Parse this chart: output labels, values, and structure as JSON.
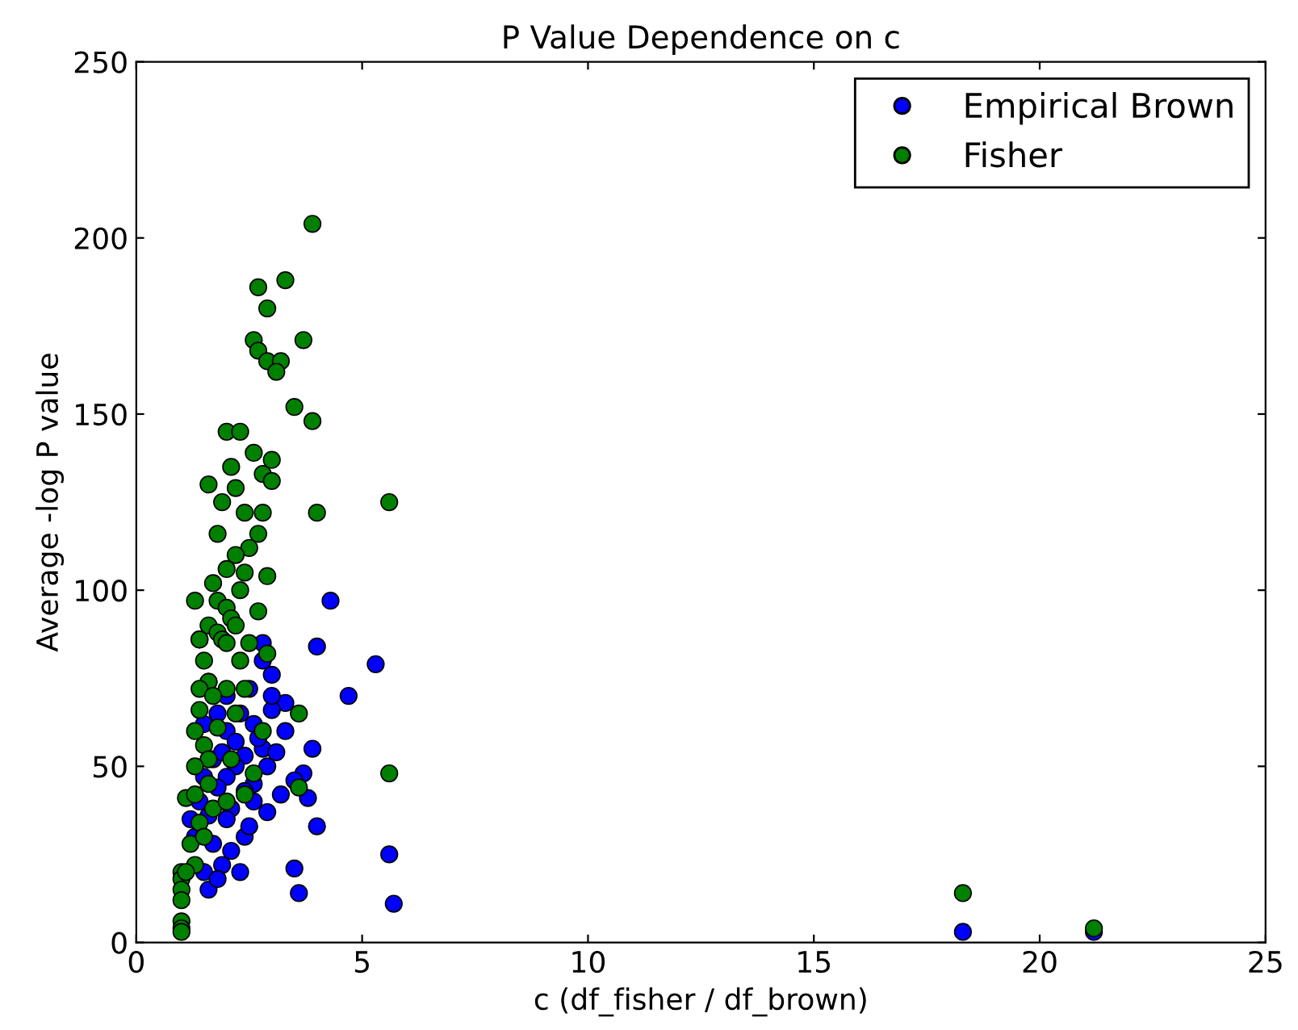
{
  "chart_data": {
    "type": "scatter",
    "title": "P Value Dependence on c",
    "xlabel": "c (df_fisher / df_brown)",
    "ylabel": "Average -log P value",
    "xlim": [
      0,
      25
    ],
    "ylim": [
      0,
      250
    ],
    "xticks": [
      0,
      5,
      10,
      15,
      20,
      25
    ],
    "yticks": [
      0,
      50,
      100,
      150,
      200,
      250
    ],
    "grid": false,
    "legend": "top right",
    "marker": "circle",
    "series": [
      {
        "name": "Empirical Brown",
        "color": "#0000ff",
        "x": [
          4.3,
          4.0,
          5.3,
          4.7,
          3.0,
          2.8,
          2.8,
          1.4,
          1.6,
          2.0,
          2.5,
          3.3,
          3.0,
          2.3,
          1.8,
          2.6,
          3.3,
          1.5,
          2.0,
          2.8,
          3.9,
          3.1,
          2.4,
          1.7,
          2.2,
          2.9,
          1.5,
          2.0,
          2.6,
          3.7,
          3.5,
          1.8,
          2.4,
          3.2,
          1.4,
          2.1,
          2.9,
          3.8,
          1.6,
          2.0,
          4.0,
          1.3,
          2.4,
          1.7,
          2.1,
          5.6,
          1.9,
          2.3,
          3.5,
          3.6,
          1.6,
          5.7,
          18.3,
          21.2,
          1.2,
          2.7,
          3.0,
          2.2,
          1.9,
          2.6,
          1.5,
          1.8,
          2.5
        ],
        "values": [
          97,
          84,
          79,
          70,
          76,
          85,
          80,
          86,
          74,
          70,
          72,
          68,
          66,
          65,
          65,
          62,
          60,
          62,
          60,
          55,
          55,
          54,
          53,
          52,
          50,
          50,
          47,
          47,
          45,
          48,
          46,
          44,
          43,
          42,
          40,
          38,
          37,
          41,
          36,
          35,
          33,
          30,
          30,
          28,
          26,
          25,
          22,
          20,
          21,
          14,
          15,
          11,
          3,
          3,
          35,
          58,
          70,
          57,
          54,
          40,
          20,
          18,
          33
        ]
      },
      {
        "name": "Fisher",
        "color": "#008000",
        "x": [
          3.9,
          2.7,
          3.3,
          2.6,
          2.9,
          3.7,
          2.7,
          2.9,
          3.2,
          3.1,
          3.5,
          3.9,
          2.0,
          2.3,
          2.6,
          2.8,
          3.0,
          2.1,
          3.0,
          1.6,
          2.2,
          1.8,
          1.9,
          2.4,
          2.8,
          4.0,
          5.6,
          2.7,
          2.5,
          2.2,
          2.0,
          2.9,
          2.4,
          1.7,
          2.3,
          1.8,
          1.3,
          2.0,
          2.7,
          2.1,
          1.6,
          1.8,
          2.2,
          1.9,
          1.4,
          2.0,
          2.5,
          2.9,
          1.5,
          2.3,
          1.6,
          2.0,
          1.4,
          1.7,
          2.4,
          1.4,
          2.2,
          1.8,
          1.3,
          1.5,
          2.8,
          3.6,
          1.6,
          1.3,
          2.1,
          1.1,
          1.3,
          1.7,
          1.4,
          2.4,
          3.6,
          5.6,
          1.2,
          1.3,
          1.0,
          1.0,
          1.0,
          1.0,
          1.0,
          1.0,
          1.0,
          18.3,
          21.2,
          1.6,
          2.0,
          1.5,
          1.1,
          2.6
        ],
        "values": [
          204,
          186,
          188,
          171,
          180,
          171,
          168,
          165,
          165,
          162,
          152,
          148,
          145,
          145,
          139,
          133,
          137,
          135,
          131,
          130,
          129,
          116,
          125,
          122,
          122,
          122,
          125,
          116,
          112,
          110,
          106,
          104,
          105,
          102,
          100,
          97,
          97,
          95,
          94,
          92,
          90,
          88,
          90,
          86,
          86,
          85,
          85,
          82,
          80,
          80,
          74,
          72,
          72,
          70,
          72,
          66,
          65,
          61,
          60,
          56,
          60,
          65,
          52,
          50,
          52,
          41,
          42,
          38,
          34,
          42,
          44,
          48,
          28,
          22,
          20,
          18,
          15,
          12,
          6,
          4,
          3,
          14,
          4,
          45,
          40,
          30,
          20,
          48
        ]
      }
    ]
  }
}
